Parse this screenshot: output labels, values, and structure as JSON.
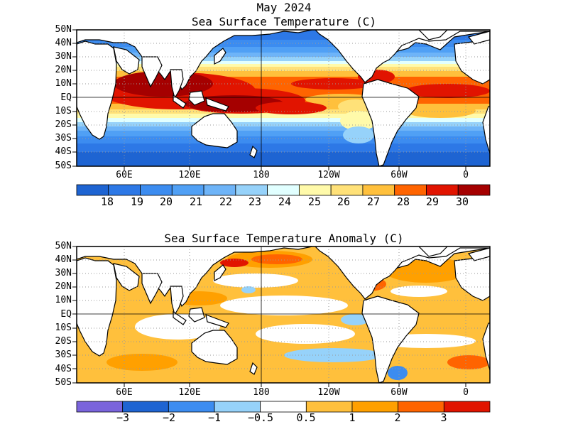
{
  "header": {
    "date": "May 2024"
  },
  "maps": [
    {
      "title": "Sea Surface Temperature (C)",
      "lat_labels": [
        "50N",
        "40N",
        "30N",
        "20N",
        "10N",
        "EQ",
        "10S",
        "20S",
        "30S",
        "40S",
        "50S"
      ],
      "lon_labels": [
        "60E",
        "120E",
        "180",
        "120W",
        "60W",
        "0"
      ],
      "colorbar": {
        "colors": [
          "#1e64d2",
          "#2d78e6",
          "#3c8cf0",
          "#50a0f5",
          "#6eb4f8",
          "#96d2fa",
          "#e1ffff",
          "#fffaaa",
          "#ffe178",
          "#ffc03c",
          "#ff6400",
          "#e11400",
          "#a50000"
        ],
        "labels": [
          "18",
          "19",
          "20",
          "21",
          "22",
          "23",
          "24",
          "25",
          "26",
          "27",
          "28",
          "29",
          "30"
        ]
      }
    },
    {
      "title": "Sea Surface Temperature Anomaly (C)",
      "lat_labels": [
        "50N",
        "40N",
        "30N",
        "20N",
        "10N",
        "EQ",
        "10S",
        "20S",
        "30S",
        "40S",
        "50S"
      ],
      "lon_labels": [
        "60E",
        "120E",
        "180",
        "120W",
        "60W",
        "0"
      ],
      "colorbar": {
        "colors": [
          "#7a64dc",
          "#1e64d2",
          "#3c8cf0",
          "#96d2fa",
          "#ffffff",
          "#ffc03c",
          "#ffa000",
          "#ff6400",
          "#e11400"
        ],
        "labels": [
          "−3",
          "−2",
          "−1",
          "−0.5",
          "0.5",
          "1",
          "2",
          "3"
        ]
      }
    }
  ],
  "map_fill": {
    "land": "#ffffff",
    "coastline": "#000000",
    "gridline": "#9a9a9a"
  }
}
